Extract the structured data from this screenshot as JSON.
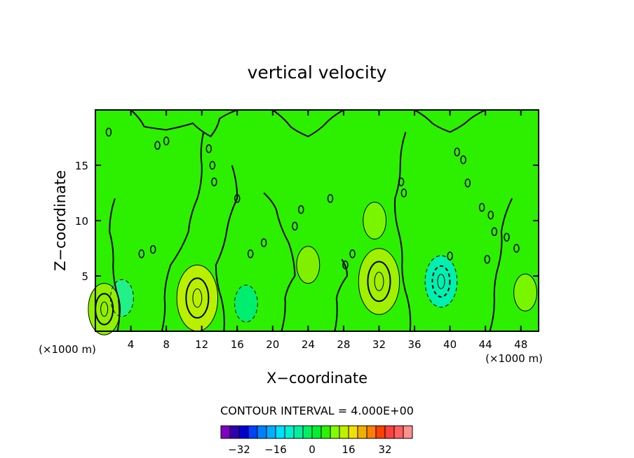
{
  "chart_data": {
    "type": "contour",
    "title": "vertical velocity",
    "xlabel": "X−coordinate",
    "ylabel": "Z−coordinate",
    "x_unit_left": "(×1000 m)",
    "x_unit_right": "(×1000 m)",
    "xlim": [
      0,
      50
    ],
    "ylim": [
      0,
      20
    ],
    "x_ticks": [
      4,
      8,
      12,
      16,
      20,
      24,
      28,
      32,
      36,
      40,
      44,
      48
    ],
    "x_tick_labels": [
      "4",
      "8",
      "12",
      "16",
      "20",
      "24",
      "28",
      "32",
      "36",
      "40",
      "44",
      "48"
    ],
    "y_ticks": [
      5,
      10,
      15
    ],
    "y_tick_labels": [
      "5",
      "10",
      "15"
    ],
    "contour_interval_text": "CONTOUR INTERVAL =  4.000E+00",
    "background_color": "#2cf000",
    "colorbar": {
      "colors": [
        "#8000c0",
        "#3000b0",
        "#0000d0",
        "#0040ff",
        "#0080ff",
        "#00b0ff",
        "#00e0ff",
        "#00f0d0",
        "#00f0a0",
        "#00f060",
        "#00f030",
        "#30f000",
        "#80ff00",
        "#c0f000",
        "#f0e000",
        "#f0b000",
        "#ff8000",
        "#ff4000",
        "#ff4040",
        "#ff6060",
        "#ff9090"
      ],
      "labels": [
        "−32",
        "−16",
        "0",
        "16",
        "32"
      ],
      "label_values": [
        -32,
        -16,
        0,
        16,
        32
      ]
    },
    "features": [
      {
        "x": 11.5,
        "z": 3.0,
        "level": 12,
        "color": "#b8f000"
      },
      {
        "x": 32.0,
        "z": 4.5,
        "level": 12,
        "color": "#a0f000"
      },
      {
        "x": 31.5,
        "z": 10.0,
        "level": 4,
        "color": "#7af500"
      },
      {
        "x": 39.0,
        "z": 4.5,
        "level": -8,
        "color": "#00f0b0"
      },
      {
        "x": 3.0,
        "z": 3.0,
        "level": -4,
        "color": "#22f088"
      },
      {
        "x": 17.0,
        "z": 2.5,
        "level": -4,
        "color": "#00ee70"
      },
      {
        "x": 1.0,
        "z": 2.0,
        "level": 8,
        "color": "#90f000"
      },
      {
        "x": 48.5,
        "z": 3.5,
        "level": 4,
        "color": "#7af500"
      },
      {
        "x": 24.0,
        "z": 6.0,
        "level": 4,
        "color": "#80f000"
      }
    ]
  }
}
